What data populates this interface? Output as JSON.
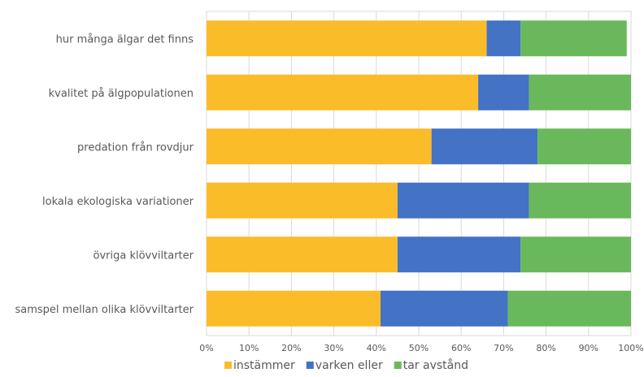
{
  "chart_data": {
    "type": "bar",
    "orientation": "horizontal",
    "stacked": "percent",
    "title": "",
    "xlabel": "",
    "ylabel": "",
    "xlim": [
      0,
      100
    ],
    "grid": true,
    "legend_position": "bottom",
    "categories": [
      "hur många älgar det finns",
      "kvalitet på älgpopulationen",
      "predation från rovdjur",
      "lokala ekologiska variationer",
      "övriga klövviltarter",
      "samspel mellan olika klövviltarter"
    ],
    "x_ticks": [
      "0%",
      "10%",
      "20%",
      "30%",
      "40%",
      "50%",
      "60%",
      "70%",
      "80%",
      "90%",
      "100%"
    ],
    "series": [
      {
        "name": "instämmer",
        "color": "#FBBC2A",
        "values": [
          66,
          64,
          53,
          45,
          45,
          41
        ]
      },
      {
        "name": "varken eller",
        "color": "#4472C4",
        "values": [
          8,
          12,
          25,
          31,
          29,
          30
        ]
      },
      {
        "name": "tar avstånd",
        "color": "#6AB85C",
        "values": [
          25,
          24,
          22,
          24,
          26,
          29
        ]
      }
    ]
  }
}
